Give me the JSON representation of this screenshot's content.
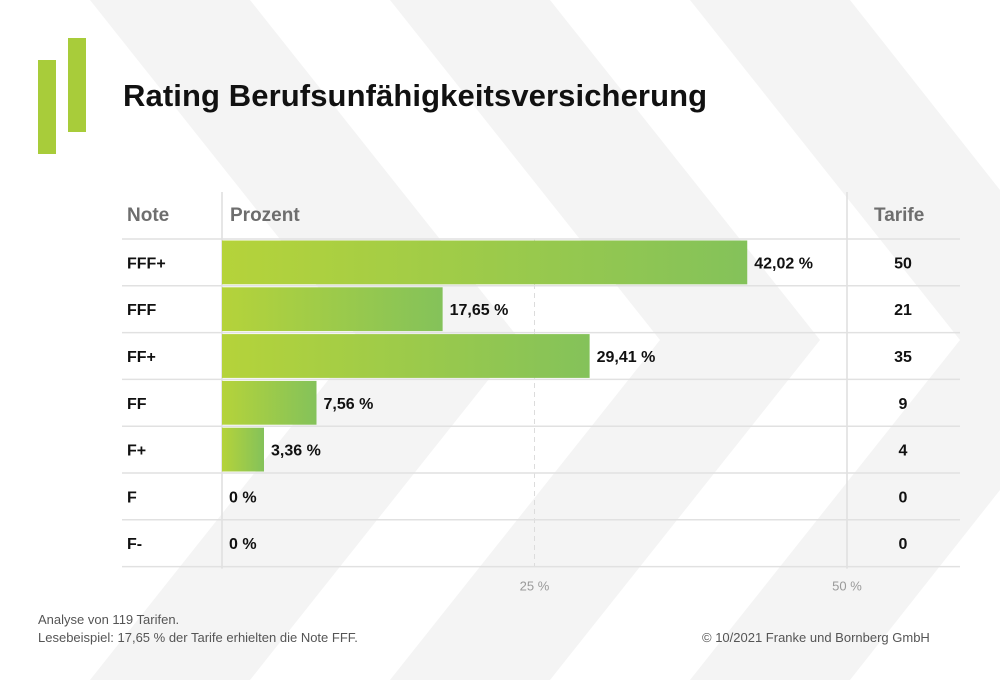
{
  "title": "Rating Berufsunfähigkeitsversicherung",
  "headers": {
    "note": "Note",
    "percent": "Prozent",
    "count": "Tarife"
  },
  "colors": {
    "bar_start": "#b5d33a",
    "bar_end": "#84c25a",
    "logo": "#a8cc3a",
    "grid": "#e1e1e1",
    "text": "#111111"
  },
  "chart_data": {
    "type": "bar",
    "orientation": "horizontal",
    "title": "Rating Berufsunfähigkeitsversicherung",
    "categories": [
      "FFF+",
      "FFF",
      "FF+",
      "FF",
      "F+",
      "F",
      "F-"
    ],
    "values": [
      42.02,
      17.65,
      29.41,
      7.56,
      3.36,
      0,
      0
    ],
    "value_labels": [
      "42,02 %",
      "17,65 %",
      "29,41 %",
      "7,56 %",
      "3,36 %",
      "0 %",
      "0 %"
    ],
    "counts": [
      "50",
      "21",
      "35",
      "9",
      "4",
      "0",
      "0"
    ],
    "xlim": [
      0,
      50
    ],
    "xticks": [
      {
        "value": 25,
        "label": "25 %"
      },
      {
        "value": 50,
        "label": "50 %"
      }
    ],
    "grid": true,
    "legend": "none"
  },
  "footer": {
    "line1": "Analyse von 119 Tarifen.",
    "line2": "Lesebeispiel: 17,65 % der Tarife erhielten die Note FFF.",
    "copyright": "© 10/2021 Franke und Bornberg GmbH"
  }
}
